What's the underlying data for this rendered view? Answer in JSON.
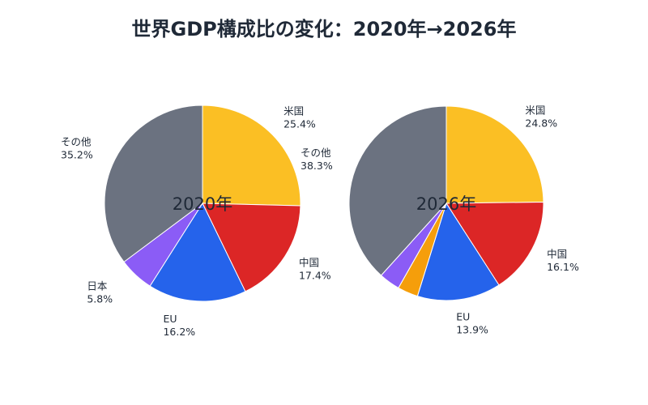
{
  "title": "世界GDP構成比の変化：2020年→2026年",
  "chart_data": [
    {
      "type": "pie",
      "center_label": "2020年",
      "start": "top",
      "direction": "clockwise",
      "slices": [
        {
          "label": "米国",
          "value": 25.4,
          "text": "25.4%",
          "color": "#fbbf24"
        },
        {
          "label": "中国",
          "value": 17.4,
          "text": "17.4%",
          "color": "#dc2626"
        },
        {
          "label": "EU",
          "value": 16.2,
          "text": "16.2%",
          "color": "#2563eb"
        },
        {
          "label": "日本",
          "value": 5.8,
          "text": "5.8%",
          "color": "#8b5cf6"
        },
        {
          "label": "その他",
          "value": 35.2,
          "text": "35.2%",
          "color": "#6b7280"
        }
      ]
    },
    {
      "type": "pie",
      "center_label": "2026年",
      "start": "top",
      "direction": "clockwise",
      "slices": [
        {
          "label": "米国",
          "value": 24.8,
          "text": "24.8%",
          "color": "#fbbf24"
        },
        {
          "label": "中国",
          "value": 16.1,
          "text": "16.1%",
          "color": "#dc2626"
        },
        {
          "label": "EU",
          "value": 13.9,
          "text": "13.9%",
          "color": "#2563eb"
        },
        {
          "label": "",
          "value": 3.4,
          "text": "",
          "color": "#f59e0b"
        },
        {
          "label": "",
          "value": 3.5,
          "text": "",
          "color": "#8b5cf6"
        },
        {
          "label": "その他",
          "value": 38.3,
          "text": "38.3%",
          "color": "#6b7280"
        }
      ]
    }
  ]
}
